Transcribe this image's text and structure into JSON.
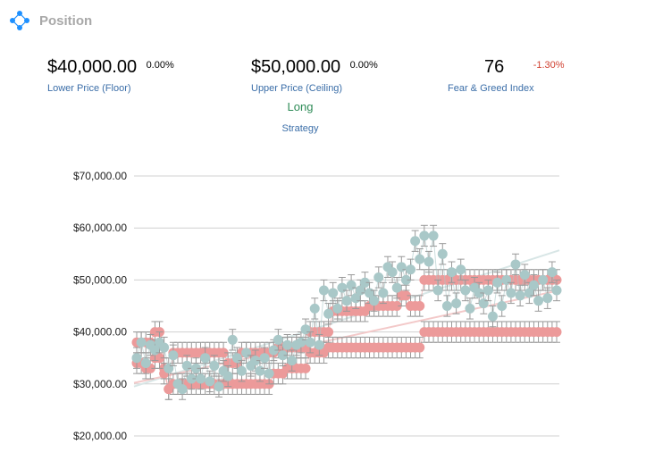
{
  "header": {
    "title": "Position",
    "icon": "network-nodes-icon"
  },
  "stats": {
    "floor": {
      "value": "$40,000.00",
      "change": "0.00%",
      "label": "Lower Price (Floor)"
    },
    "ceiling": {
      "value": "$50,000.00",
      "change": "0.00%",
      "label": "Upper Price (Ceiling)"
    },
    "greed": {
      "value": "76",
      "change": "-1.30%",
      "label": "Fear & Greed Index"
    },
    "strategy": {
      "value": "Long",
      "label": "Strategy"
    }
  },
  "colors": {
    "strategy": "#2e8b57",
    "label": "#3b6ea8",
    "negative": "#d04030",
    "price": "#a9c8c8",
    "bounds": "#ec9a9a",
    "grid": "#d0d0d0",
    "errorbar": "#999999"
  },
  "chart_data": {
    "type": "scatter",
    "ylim": [
      18000,
      72000
    ],
    "yticks": [
      "$20,000.00",
      "$30,000.00",
      "$40,000.00",
      "$50,000.00",
      "$60,000.00",
      "$70,000.00"
    ],
    "ytick_values": [
      20000,
      30000,
      40000,
      50000,
      60000,
      70000
    ],
    "grid": true,
    "error": 2000,
    "series": [
      {
        "role": "price",
        "color": "#a9c8c8",
        "values": [
          35000,
          38000,
          34000,
          37500,
          36500,
          38000,
          37000,
          33000,
          35500,
          30000,
          29000,
          33500,
          31000,
          33000,
          31000,
          35000,
          30500,
          33500,
          29500,
          32500,
          31500,
          38500,
          35000,
          32500,
          36000,
          33500,
          34500,
          32500,
          35000,
          32000,
          36500,
          38500,
          35500,
          37500,
          34500,
          37500,
          38000,
          40500,
          38000,
          44500,
          37500,
          48000,
          43500,
          47500,
          44500,
          48500,
          46000,
          49000,
          46500,
          48000,
          49500,
          47500,
          46000,
          50500,
          47500,
          52500,
          51500,
          48500,
          52500,
          50000,
          52000,
          57500,
          54000,
          58500,
          53500,
          58500,
          48000,
          55000,
          45000,
          51500,
          45500,
          52000,
          48000,
          44500,
          48500,
          47500,
          45500,
          48000,
          43000,
          49500,
          45000,
          50000,
          47500,
          53000,
          47000,
          51000,
          47500,
          49000,
          46000,
          50000,
          46500,
          51500,
          48000
        ]
      },
      {
        "role": "ceiling",
        "color": "#ec9a9a",
        "values": [
          38000,
          38000,
          38000,
          38000,
          40000,
          40000,
          33000,
          29000,
          36000,
          36000,
          36000,
          36000,
          36000,
          36000,
          36000,
          36000,
          36000,
          36000,
          36000,
          36000,
          34000,
          34000,
          34000,
          36000,
          36000,
          36000,
          36000,
          36000,
          36000,
          36000,
          36000,
          37000,
          37000,
          37000,
          37000,
          37000,
          37000,
          37000,
          40000,
          40000,
          40000,
          40000,
          40000,
          44000,
          44000,
          44000,
          44000,
          44000,
          44000,
          44000,
          44000,
          45000,
          45000,
          45000,
          45000,
          45000,
          45000,
          45000,
          47000,
          47000,
          45000,
          45000,
          45000,
          50000,
          50000,
          50000,
          50000,
          50000,
          50000,
          50000,
          50000,
          50000,
          50000,
          50000,
          50000,
          50000,
          50000,
          50000,
          50000,
          50000,
          50000,
          50000,
          50000,
          50000,
          50000,
          50000,
          50000,
          50000,
          50000,
          50000,
          50000,
          50000,
          50000
        ]
      },
      {
        "role": "floor",
        "color": "#ec9a9a",
        "values": [
          34000,
          34000,
          33000,
          33000,
          35000,
          35000,
          32000,
          29000,
          30000,
          30000,
          30000,
          30000,
          30000,
          30000,
          30000,
          30000,
          30000,
          30000,
          30000,
          30000,
          30000,
          30000,
          30000,
          30000,
          30000,
          30000,
          30000,
          30000,
          30000,
          30000,
          32000,
          32000,
          32000,
          33000,
          33000,
          33000,
          33000,
          33000,
          36000,
          36000,
          36000,
          36000,
          37000,
          37000,
          37000,
          37000,
          37000,
          37000,
          37000,
          37000,
          37000,
          37000,
          37000,
          37000,
          37000,
          37000,
          37000,
          37000,
          37000,
          37000,
          37000,
          37000,
          37000,
          40000,
          40000,
          40000,
          40000,
          40000,
          40000,
          40000,
          40000,
          40000,
          40000,
          40000,
          40000,
          40000,
          40000,
          40000,
          40000,
          40000,
          40000,
          40000,
          40000,
          40000,
          40000,
          40000,
          40000,
          40000,
          40000,
          40000,
          40000,
          40000,
          40000
        ]
      }
    ],
    "trendlines": [
      {
        "role": "price-trend",
        "color": "#d8e6e6",
        "from": 29500,
        "to": 55700
      },
      {
        "role": "floor-trend",
        "color": "#f3c9c9",
        "from": 30200,
        "to": 48000
      }
    ]
  }
}
